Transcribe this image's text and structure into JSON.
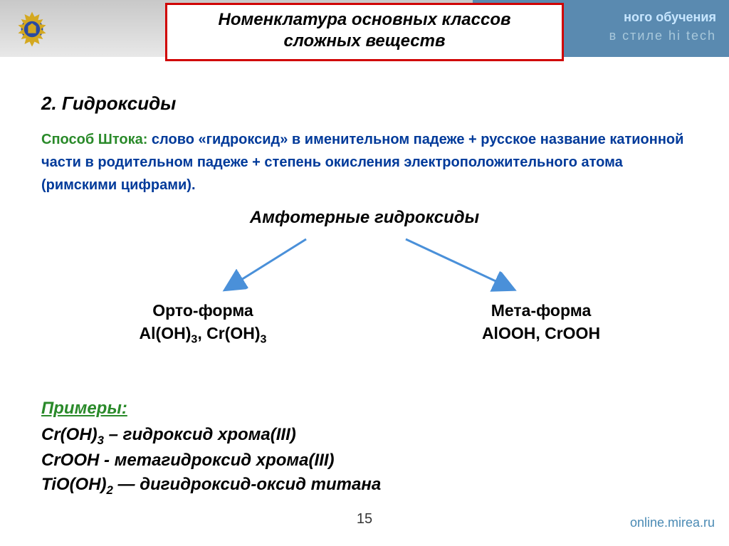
{
  "header": {
    "right_line1": "ного обучения",
    "right_line2": "в стиле hi tech"
  },
  "title": {
    "line1": "Номенклатура основных классов",
    "line2": "сложных веществ"
  },
  "section": "2. Гидроксиды",
  "shtock": {
    "lead": "Способ Штока:",
    "body": " слово «гидроксид» в именительном падеже + русское название катионной части в родительном падеже + степень окисления электроположительного атома (римскими цифрами)."
  },
  "amphoteric_heading": "Амфотерные гидроксиды",
  "branches": {
    "left": {
      "title": "Орто-форма",
      "formula_html": "Al(OH)<span class='sub'>3</span>, Cr(OH)<span class='sub'>3</span>"
    },
    "right": {
      "title": "Мета-форма",
      "formula_html": "AlOOH, CrOOH"
    }
  },
  "examples": {
    "heading": "Примеры:",
    "items_html": [
      "Cr(OH)<span class='sub'>3</span> – гидроксид хрома(III)",
      "CrOOH -  метагидроксид хрома(III)",
      "TiO(OH)<span class='sub'>2</span> — дигидроксид-оксид титана"
    ]
  },
  "page_number": "15",
  "footer_url": "online.mirea.ru",
  "colors": {
    "title_border": "#d00000",
    "header_grad_top": "#c8c8c8",
    "header_right_bg": "#5a8ab0",
    "blue_text": "#003a9a",
    "green_text": "#2a8a2a",
    "arrow": "#4a90d9"
  }
}
